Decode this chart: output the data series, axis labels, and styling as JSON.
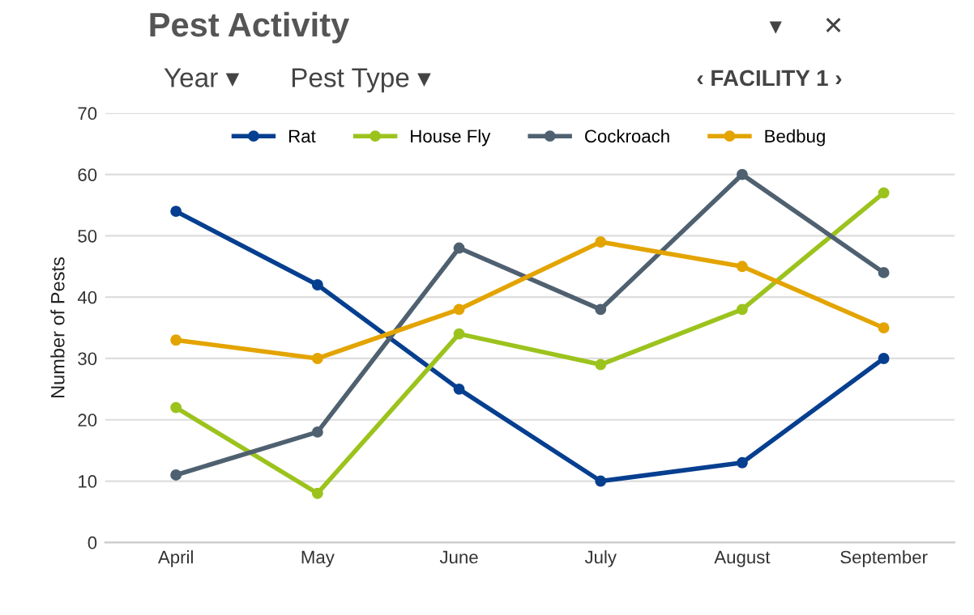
{
  "chart_data": {
    "type": "line",
    "title": "Pest Activity",
    "ylabel": "Number of Pests",
    "categories": [
      "April",
      "May",
      "June",
      "July",
      "August",
      "September"
    ],
    "series": [
      {
        "name": "Rat",
        "color": "#063f8f",
        "values": [
          54,
          42,
          25,
          10,
          13,
          30
        ]
      },
      {
        "name": "House Fly",
        "color": "#9cc31d",
        "values": [
          22,
          8,
          34,
          29,
          38,
          57
        ]
      },
      {
        "name": "Cockroach",
        "color": "#4f6170",
        "values": [
          11,
          18,
          48,
          38,
          60,
          44
        ]
      },
      {
        "name": "Bedbug",
        "color": "#e3a400",
        "values": [
          33,
          30,
          38,
          49,
          45,
          35
        ]
      }
    ],
    "ylim": [
      0,
      70
    ],
    "yticks": [
      0,
      10,
      20,
      30,
      40,
      50,
      60,
      70
    ],
    "grid": "y",
    "legend": "top",
    "marker": "circle",
    "line_style": "solid",
    "annotations": [
      "Year ▾",
      "Pest Type ▾",
      "‹ FACILITY 1 ›",
      "▾",
      "✕"
    ]
  }
}
